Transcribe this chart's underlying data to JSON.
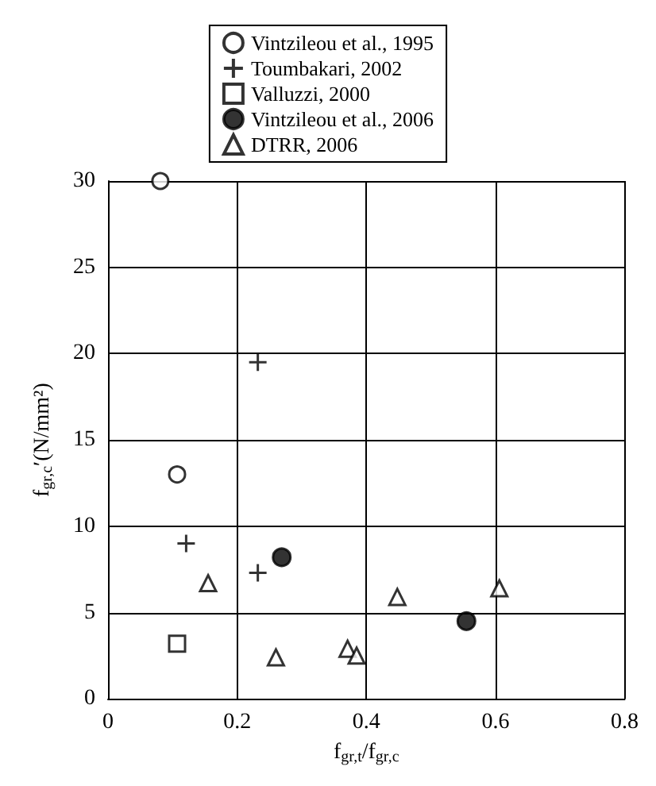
{
  "chart_data": {
    "type": "scatter",
    "xlabel": "f$_{gr,t}$/f$_{gr,c}$",
    "ylabel": "f$_{gr,c}$′(N/mm²)",
    "xlim": [
      0,
      0.8
    ],
    "xticks": [
      0,
      0.2,
      0.4,
      0.6,
      0.8
    ],
    "ylim": [
      0,
      30
    ],
    "yticks": [
      0,
      5,
      10,
      15,
      20,
      25,
      30
    ],
    "grid": true,
    "legend": "top",
    "series": [
      {
        "name": "Vintzileou et al., 1995",
        "color": "#ffffff",
        "marker": "circle",
        "x": [
          0.081,
          0.107
        ],
        "values": [
          30,
          13
        ]
      },
      {
        "name": "Toumbakari, 2002",
        "color": "#000000",
        "marker": "cross",
        "x": [
          0.232,
          0.121,
          0.232
        ],
        "values": [
          19.5,
          9,
          7.3
        ]
      },
      {
        "name": "Valluzzi, 2000",
        "color": "#ffffff",
        "marker": "square",
        "x": [
          0.107
        ],
        "values": [
          3.2
        ]
      },
      {
        "name": "Vintzileou et al., 2006",
        "color": "#000000",
        "marker": "circle",
        "x": [
          0.269,
          0.555
        ],
        "values": [
          8.2,
          4.5
        ]
      },
      {
        "name": "DTRR, 2006",
        "color": "#ffffff",
        "marker": "triangle",
        "x": [
          0.155,
          0.26,
          0.371,
          0.385,
          0.448,
          0.606
        ],
        "values": [
          6.7,
          2.4,
          2.9,
          2.5,
          5.9,
          6.4
        ]
      }
    ]
  }
}
